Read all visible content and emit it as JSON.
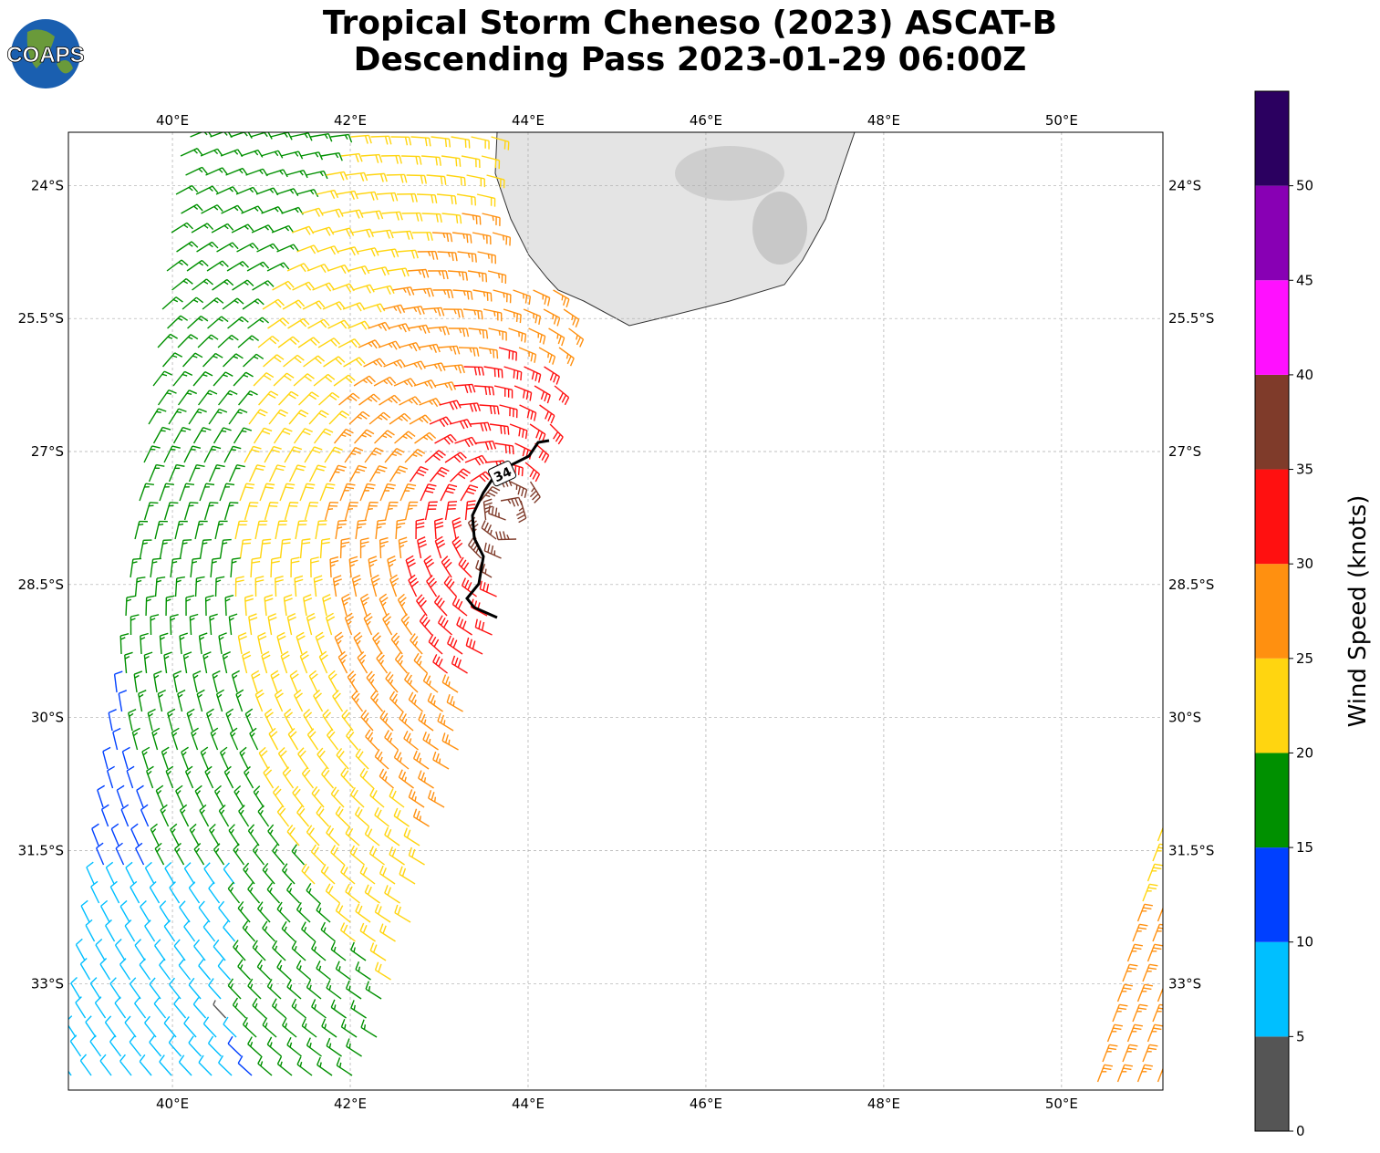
{
  "title_line1": "Tropical Storm Cheneso (2023) ASCAT-B",
  "title_line2": "Descending Pass 2023-01-29 06:00Z",
  "logo_text": "COAPS",
  "chart_data": {
    "type": "map-wind-barbs",
    "extent": {
      "lon": [
        38.83,
        51.14
      ],
      "lat": [
        -34.2,
        -23.4
      ]
    },
    "lon_ticks": [
      "40°E",
      "42°E",
      "44°E",
      "46°E",
      "48°E",
      "50°E"
    ],
    "lon_values": [
      40,
      42,
      44,
      46,
      48,
      50
    ],
    "lat_ticks": [
      "24°S",
      "25.5°S",
      "27°S",
      "28.5°S",
      "30°S",
      "31.5°S",
      "33°S"
    ],
    "lat_values": [
      -24,
      -25.5,
      -27,
      -28.5,
      -30,
      -31.5,
      -33
    ],
    "grid": true,
    "contour_label": "34",
    "colorbar": {
      "label": "Wind Speed (knots)",
      "range": [
        0,
        55
      ],
      "ticks": [
        "0",
        "5",
        "10",
        "15",
        "20",
        "25",
        "30",
        "35",
        "40",
        "45",
        "50"
      ],
      "tick_values": [
        0,
        5,
        10,
        15,
        20,
        25,
        30,
        35,
        40,
        45,
        50
      ],
      "colors": [
        "#555555",
        "#00bfff",
        "#0040ff",
        "#009000",
        "#ffd510",
        "#ff9010",
        "#ff1010",
        "#7f3b2a",
        "#ff10ff",
        "#8800b4",
        "#2b0060"
      ]
    }
  }
}
